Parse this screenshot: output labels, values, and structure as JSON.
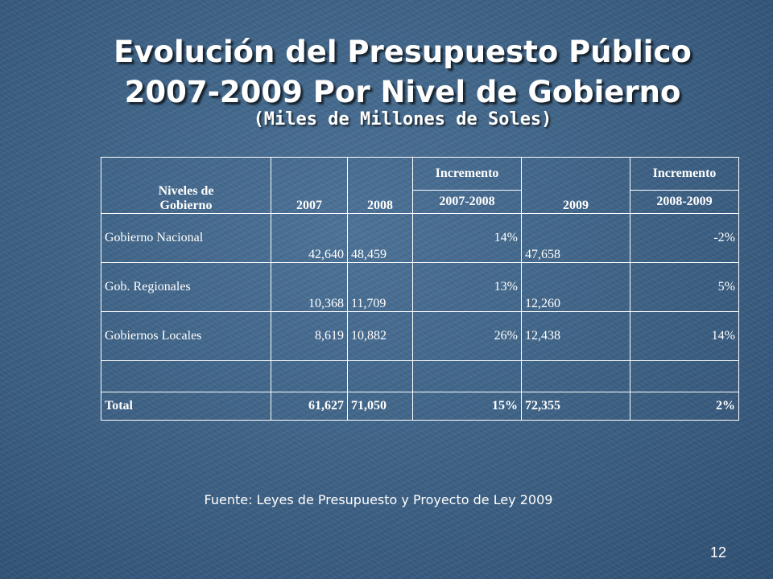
{
  "slide": {
    "title_line1": "Evolución del Presupuesto Público",
    "title_line2": "2007-2009 Por Nivel de Gobierno",
    "subtitle": "(Miles de Millones de Soles)",
    "source": "Fuente: Leyes de Presupuesto y Proyecto de Ley 2009",
    "page_number": "12"
  },
  "table": {
    "headers": {
      "niveles_line1": "Niveles de",
      "niveles_line2": "Gobierno",
      "y2007": "2007",
      "y2008": "2008",
      "inc1_top": "Incremento",
      "inc1_bottom": "2007-2008",
      "y2009": "2009",
      "inc2_top": "Incremento",
      "inc2_bottom": "2008-2009"
    },
    "rows": [
      {
        "nivel": "Gobierno Nacional",
        "v2007": "42,640",
        "v2008": "48,459",
        "inc1": "14%",
        "v2009": "47,658",
        "inc2": "-2%"
      },
      {
        "nivel": "Gob. Regionales",
        "v2007": "10,368",
        "v2008": "11,709",
        "inc1": "13%",
        "v2009": "12,260",
        "inc2": "5%"
      },
      {
        "nivel": "Gobiernos Locales",
        "v2007": "8,619",
        "v2008": "10,882",
        "inc1": "26%",
        "v2009": "12,438",
        "inc2": "14%"
      }
    ],
    "total": {
      "nivel": "Total",
      "v2007": "61,627",
      "v2008": "71,050",
      "inc1": "15%",
      "v2009": "72,355",
      "inc2": "2%"
    }
  }
}
